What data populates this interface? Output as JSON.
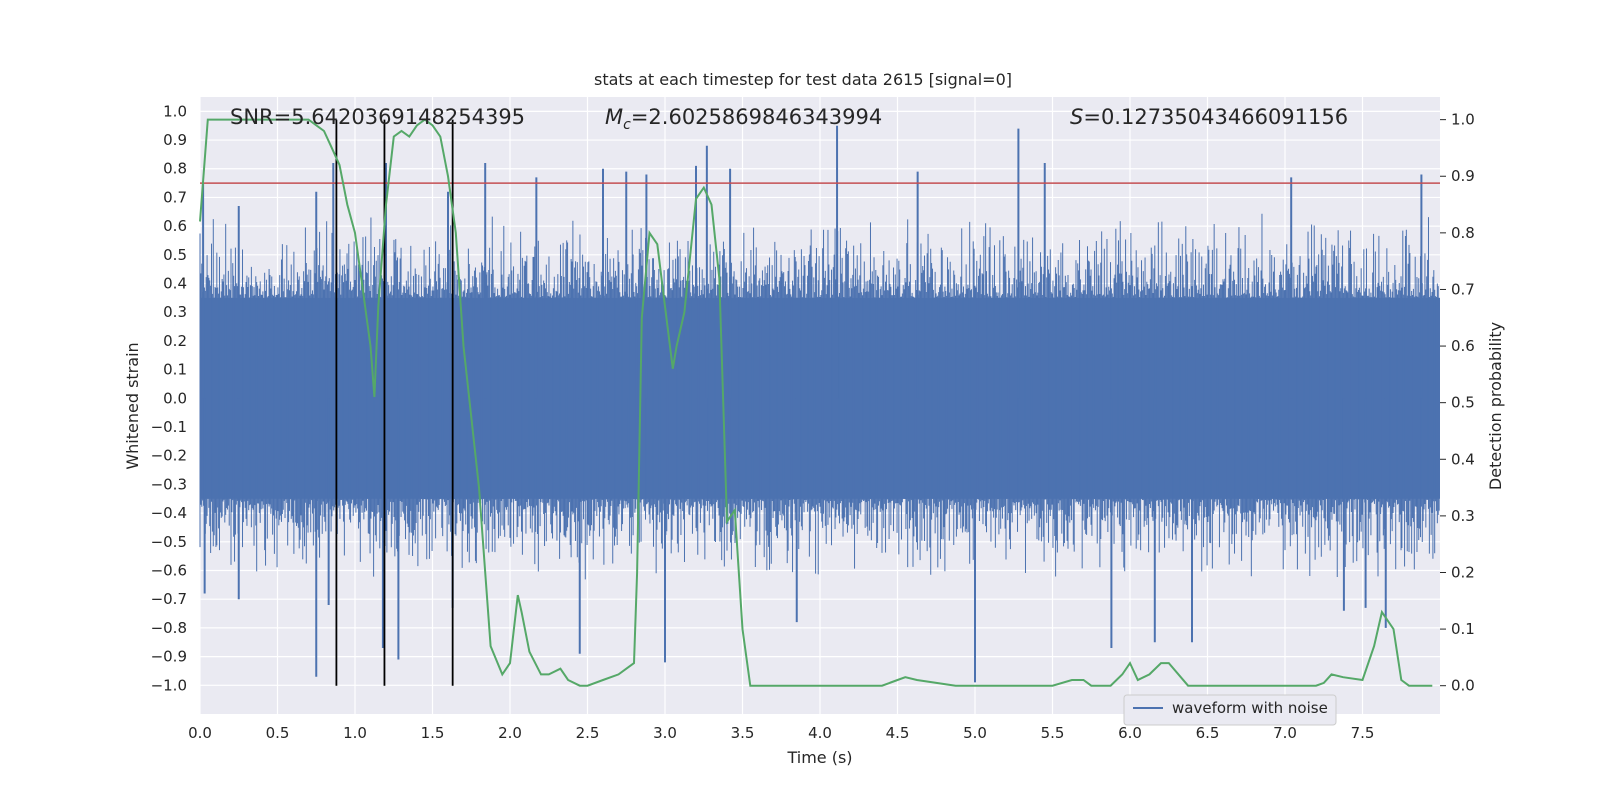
{
  "chart_data": {
    "type": "line",
    "title": "stats at each timestep for test data 2615 [signal=0]",
    "xlabel": "Time (s)",
    "ylabel": "Whitened strain",
    "y2label": "Detection probability",
    "xlim": [
      0.0,
      8.0
    ],
    "ylim": [
      -1.1,
      1.05
    ],
    "y2lim": [
      -0.05,
      1.04
    ],
    "xticks": [
      0.0,
      0.5,
      1.0,
      1.5,
      2.0,
      2.5,
      3.0,
      3.5,
      4.0,
      4.5,
      5.0,
      5.5,
      6.0,
      6.5,
      7.0,
      7.5
    ],
    "xtick_labels": [
      "0.0",
      "0.5",
      "1.0",
      "1.5",
      "2.0",
      "2.5",
      "3.0",
      "3.5",
      "4.0",
      "4.5",
      "5.0",
      "5.5",
      "6.0",
      "6.5",
      "7.0",
      "7.5"
    ],
    "yticks": [
      1.0,
      0.9,
      0.8,
      0.7,
      0.6,
      0.5,
      0.4,
      0.3,
      0.2,
      0.1,
      0.0,
      -0.1,
      -0.2,
      -0.3,
      -0.4,
      -0.5,
      -0.6,
      -0.7,
      -0.8,
      -0.9,
      -1.0
    ],
    "ytick_labels": [
      "1.0",
      "0.9",
      "0.8",
      "0.7",
      "0.6",
      "0.5",
      "0.4",
      "0.3",
      "0.2",
      "0.1",
      "0.0",
      "−0.1",
      "−0.2",
      "−0.3",
      "−0.4",
      "−0.5",
      "−0.6",
      "−0.7",
      "−0.8",
      "−0.9",
      "−1.0"
    ],
    "y2ticks": [
      1.0,
      0.9,
      0.8,
      0.7,
      0.6,
      0.5,
      0.4,
      0.3,
      0.2,
      0.1,
      0.0
    ],
    "y2tick_labels": [
      "1.0",
      "0.9",
      "0.8",
      "0.7",
      "0.6",
      "0.5",
      "0.4",
      "0.3",
      "0.2",
      "0.1",
      "0.0"
    ],
    "grid": true,
    "legend": {
      "placement": "lower-right",
      "entries": [
        "waveform with noise"
      ]
    },
    "annotations": {
      "snr": "SNR=5.6420369148254395",
      "mc_symbol": "M",
      "mc_sub": "c",
      "mc_value": "=2.6025869846343994",
      "s_symbol": "S",
      "s_value": "=0.12735043466091156"
    },
    "waveform": {
      "name": "waveform with noise",
      "color": "#4c72b0",
      "band_envelope": 0.35,
      "spikes": [
        {
          "x": 0.02,
          "y": 0.75
        },
        {
          "x": 0.03,
          "y": -0.68
        },
        {
          "x": 0.25,
          "y": 0.67
        },
        {
          "x": 0.25,
          "y": -0.7
        },
        {
          "x": 0.75,
          "y": -0.97
        },
        {
          "x": 0.75,
          "y": 0.72
        },
        {
          "x": 0.83,
          "y": -0.72
        },
        {
          "x": 0.86,
          "y": 0.82
        },
        {
          "x": 1.18,
          "y": -0.87
        },
        {
          "x": 1.2,
          "y": 0.82
        },
        {
          "x": 1.28,
          "y": -0.91
        },
        {
          "x": 1.6,
          "y": 0.72
        },
        {
          "x": 1.63,
          "y": -0.73
        },
        {
          "x": 1.84,
          "y": 0.82
        },
        {
          "x": 2.17,
          "y": 0.77
        },
        {
          "x": 2.45,
          "y": -0.89
        },
        {
          "x": 2.6,
          "y": 0.8
        },
        {
          "x": 2.75,
          "y": 0.79
        },
        {
          "x": 2.88,
          "y": 0.78
        },
        {
          "x": 3.0,
          "y": -0.92
        },
        {
          "x": 3.2,
          "y": 0.81
        },
        {
          "x": 3.27,
          "y": 0.88
        },
        {
          "x": 3.42,
          "y": 0.8
        },
        {
          "x": 3.85,
          "y": -0.78
        },
        {
          "x": 4.11,
          "y": 0.95
        },
        {
          "x": 4.63,
          "y": 0.79
        },
        {
          "x": 5.0,
          "y": -0.99
        },
        {
          "x": 5.28,
          "y": 0.94
        },
        {
          "x": 5.45,
          "y": 0.82
        },
        {
          "x": 5.88,
          "y": -0.87
        },
        {
          "x": 6.16,
          "y": -0.85
        },
        {
          "x": 6.4,
          "y": -0.85
        },
        {
          "x": 7.04,
          "y": 0.77
        },
        {
          "x": 7.38,
          "y": -0.74
        },
        {
          "x": 7.52,
          "y": -0.73
        },
        {
          "x": 7.65,
          "y": -0.8
        },
        {
          "x": 7.88,
          "y": 0.78
        }
      ]
    },
    "threshold": {
      "y": 0.75,
      "color": "#c44e52"
    },
    "event_lines": {
      "x": [
        0.88,
        1.19,
        1.63
      ],
      "color": "#000000"
    },
    "probability": {
      "name": "detection probability",
      "color": "#55a868",
      "x": [
        0.0,
        0.05,
        0.125,
        0.25,
        0.375,
        0.5,
        0.625,
        0.7,
        0.8,
        0.85,
        0.9,
        0.95,
        1.0,
        1.05,
        1.1,
        1.125,
        1.15,
        1.2,
        1.25,
        1.3,
        1.35,
        1.4,
        1.45,
        1.5,
        1.55,
        1.6,
        1.65,
        1.7,
        1.8,
        1.875,
        1.95,
        2.0,
        2.05,
        2.075,
        2.125,
        2.2,
        2.25,
        2.325,
        2.375,
        2.45,
        2.5,
        2.6,
        2.7,
        2.75,
        2.8,
        2.82,
        2.85,
        2.9,
        2.95,
        3.0,
        3.05,
        3.075,
        3.125,
        3.2,
        3.25,
        3.3,
        3.35,
        3.4,
        3.45,
        3.5,
        3.55,
        3.625,
        3.75,
        4.0,
        4.25,
        4.4,
        4.5,
        4.55,
        4.625,
        4.75,
        4.875,
        5.0,
        5.25,
        5.5,
        5.625,
        5.7,
        5.75,
        5.875,
        5.95,
        6.0,
        6.05,
        6.125,
        6.2,
        6.25,
        6.375,
        6.5,
        6.75,
        7.0,
        7.2,
        7.25,
        7.3,
        7.375,
        7.5,
        7.575,
        7.625,
        7.7,
        7.75,
        7.8,
        7.875,
        7.95
      ],
      "y": [
        0.82,
        1.0,
        1.0,
        1.0,
        1.0,
        1.0,
        1.0,
        1.0,
        0.98,
        0.95,
        0.92,
        0.85,
        0.8,
        0.7,
        0.6,
        0.51,
        0.67,
        0.85,
        0.97,
        0.98,
        0.97,
        0.99,
        1.0,
        0.99,
        0.97,
        0.9,
        0.8,
        0.6,
        0.35,
        0.07,
        0.02,
        0.04,
        0.16,
        0.13,
        0.06,
        0.02,
        0.02,
        0.03,
        0.01,
        0.0,
        0.0,
        0.01,
        0.02,
        0.03,
        0.04,
        0.2,
        0.65,
        0.8,
        0.78,
        0.67,
        0.56,
        0.6,
        0.66,
        0.86,
        0.88,
        0.85,
        0.72,
        0.29,
        0.31,
        0.1,
        0.0,
        0.0,
        0.0,
        0.0,
        0.0,
        0.0,
        0.01,
        0.015,
        0.01,
        0.005,
        0.0,
        0.0,
        0.0,
        0.0,
        0.01,
        0.01,
        0.0,
        0.0,
        0.02,
        0.04,
        0.01,
        0.02,
        0.04,
        0.04,
        0.0,
        0.0,
        0.0,
        0.0,
        0.0,
        0.005,
        0.02,
        0.015,
        0.01,
        0.07,
        0.13,
        0.1,
        0.01,
        0.0,
        0.0,
        0.0
      ]
    }
  }
}
